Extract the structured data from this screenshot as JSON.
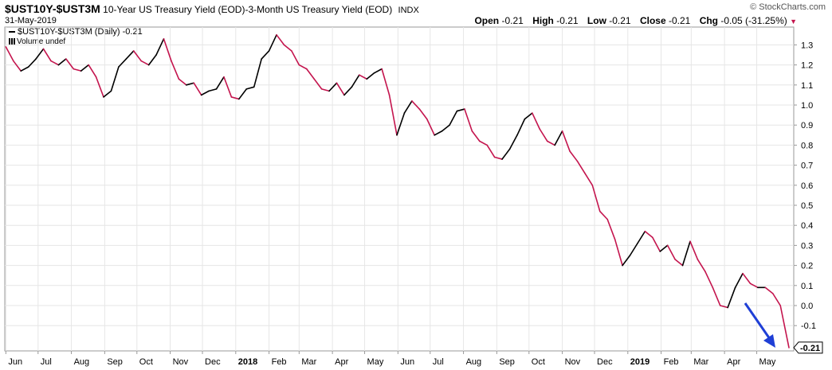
{
  "header": {
    "symbol": "$UST10Y-$UST3M",
    "description": "10-Year US Treasury Yield (EOD)-3-Month US Treasury Yield (EOD)",
    "exchange": "INDX",
    "date": "31-May-2019",
    "brand": "© StockCharts.com",
    "open_label": "Open",
    "open_value": "-0.21",
    "high_label": "High",
    "high_value": "-0.21",
    "low_label": "Low",
    "low_value": "-0.21",
    "close_label": "Close",
    "close_value": "-0.21",
    "chg_label": "Chg",
    "chg_value": "-0.05 (-31.25%)"
  },
  "legend": {
    "series_label": "$UST10Y-$UST3M (Daily) -0.21",
    "volume_label": "Volume undef"
  },
  "colors": {
    "up": "#000000",
    "down": "#c4154e",
    "arrow": "#1f3fd6",
    "grid": "#e6e6e6"
  },
  "chart_data": {
    "type": "line",
    "x_tick_labels": [
      "Jun",
      "Jul",
      "Aug",
      "Sep",
      "Oct",
      "Nov",
      "Dec",
      "2018",
      "Feb",
      "Mar",
      "Apr",
      "May",
      "Jun",
      "Jul",
      "Aug",
      "Sep",
      "Oct",
      "Nov",
      "Dec",
      "2019",
      "Feb",
      "Mar",
      "Apr",
      "May"
    ],
    "y_ticks": [
      1.3,
      1.2,
      1.1,
      1.0,
      0.9,
      0.8,
      0.7,
      0.6,
      0.5,
      0.4,
      0.3,
      0.2,
      0.1,
      0.0,
      -0.1
    ],
    "ylim": [
      -0.21,
      1.38
    ],
    "last_value_label": "-0.21",
    "x": [
      "2017-06-01",
      "2017-06-08",
      "2017-06-15",
      "2017-06-22",
      "2017-06-29",
      "2017-07-06",
      "2017-07-13",
      "2017-07-20",
      "2017-07-27",
      "2017-08-03",
      "2017-08-10",
      "2017-08-17",
      "2017-08-24",
      "2017-08-31",
      "2017-09-07",
      "2017-09-14",
      "2017-09-21",
      "2017-09-28",
      "2017-10-05",
      "2017-10-12",
      "2017-10-19",
      "2017-10-26",
      "2017-11-02",
      "2017-11-09",
      "2017-11-16",
      "2017-11-23",
      "2017-11-30",
      "2017-12-07",
      "2017-12-14",
      "2017-12-21",
      "2017-12-28",
      "2018-01-04",
      "2018-01-11",
      "2018-01-18",
      "2018-01-25",
      "2018-02-01",
      "2018-02-08",
      "2018-02-15",
      "2018-02-22",
      "2018-03-01",
      "2018-03-08",
      "2018-03-15",
      "2018-03-22",
      "2018-03-29",
      "2018-04-05",
      "2018-04-12",
      "2018-04-19",
      "2018-04-26",
      "2018-05-03",
      "2018-05-10",
      "2018-05-17",
      "2018-05-24",
      "2018-05-31",
      "2018-06-07",
      "2018-06-14",
      "2018-06-21",
      "2018-06-28",
      "2018-07-05",
      "2018-07-12",
      "2018-07-19",
      "2018-07-26",
      "2018-08-02",
      "2018-08-09",
      "2018-08-16",
      "2018-08-23",
      "2018-08-30",
      "2018-09-06",
      "2018-09-13",
      "2018-09-20",
      "2018-09-27",
      "2018-10-04",
      "2018-10-11",
      "2018-10-18",
      "2018-10-25",
      "2018-11-01",
      "2018-11-08",
      "2018-11-15",
      "2018-11-22",
      "2018-11-29",
      "2018-12-06",
      "2018-12-13",
      "2018-12-20",
      "2018-12-27",
      "2019-01-03",
      "2019-01-10",
      "2019-01-17",
      "2019-01-24",
      "2019-01-31",
      "2019-02-07",
      "2019-02-14",
      "2019-02-21",
      "2019-02-28",
      "2019-03-07",
      "2019-03-14",
      "2019-03-21",
      "2019-03-28",
      "2019-04-04",
      "2019-04-11",
      "2019-04-18",
      "2019-04-25",
      "2019-05-02",
      "2019-05-09",
      "2019-05-16",
      "2019-05-23",
      "2019-05-31"
    ],
    "values": [
      1.29,
      1.22,
      1.17,
      1.19,
      1.23,
      1.28,
      1.22,
      1.2,
      1.23,
      1.18,
      1.17,
      1.2,
      1.14,
      1.04,
      1.07,
      1.19,
      1.23,
      1.27,
      1.22,
      1.2,
      1.25,
      1.33,
      1.22,
      1.13,
      1.1,
      1.11,
      1.05,
      1.07,
      1.08,
      1.14,
      1.04,
      1.03,
      1.08,
      1.09,
      1.23,
      1.27,
      1.35,
      1.3,
      1.27,
      1.2,
      1.18,
      1.13,
      1.08,
      1.07,
      1.11,
      1.05,
      1.09,
      1.15,
      1.13,
      1.16,
      1.18,
      1.05,
      0.85,
      0.96,
      1.02,
      0.98,
      0.93,
      0.85,
      0.87,
      0.9,
      0.97,
      0.98,
      0.87,
      0.82,
      0.8,
      0.74,
      0.73,
      0.78,
      0.85,
      0.93,
      0.96,
      0.88,
      0.82,
      0.8,
      0.87,
      0.77,
      0.72,
      0.66,
      0.6,
      0.47,
      0.43,
      0.33,
      0.2,
      0.25,
      0.31,
      0.37,
      0.34,
      0.27,
      0.3,
      0.23,
      0.2,
      0.32,
      0.23,
      0.17,
      0.09,
      0.0,
      -0.01,
      0.09,
      0.16,
      0.11,
      0.09,
      0.09,
      0.06,
      0.0,
      -0.21
    ]
  }
}
